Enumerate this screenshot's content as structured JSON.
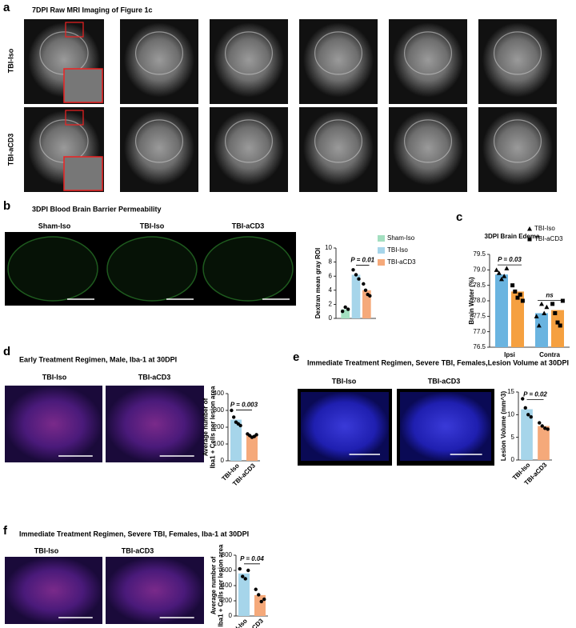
{
  "figure": {
    "a": {
      "label": "a",
      "title": "7DPI Raw MRI Imaging of Figure 1c",
      "rows": [
        "TBI-Iso",
        "TBI-aCD3"
      ]
    },
    "b": {
      "label": "b",
      "title": "3DPI Blood Brain Barrier Permeability",
      "images": [
        "Sham-Iso",
        "TBI-Iso",
        "TBI-aCD3"
      ]
    },
    "c": {
      "label": "c"
    },
    "d": {
      "label": "d",
      "title": "Early Treatment Regimen,  Male, Iba-1 at 30DPI",
      "images": [
        "TBI-Iso",
        "TBI-aCD3"
      ]
    },
    "e": {
      "label": "e",
      "title": "Immediate Treatment Regimen, Severe TBI, Females,Lesion Volume at 30DPI",
      "images": [
        "TBI-Iso",
        "TBI-aCD3"
      ]
    },
    "f": {
      "label": "f",
      "title": "Immediate Treatment Regimen, Severe TBI, Females, Iba-1 at 30DPI",
      "images": [
        "TBI-Iso",
        "TBI-aCD3"
      ]
    }
  },
  "chart_data": [
    {
      "type": "bar",
      "ylabel": [
        "Dextran mean gray  ROI"
      ],
      "categories": [
        null
      ],
      "series": [
        {
          "name": "Sham-Iso",
          "color": "#a3dfc0",
          "values": [
            1.3
          ],
          "points": [
            [
              1.0,
              1.6,
              1.3
            ]
          ]
        },
        {
          "name": "TBI-Iso",
          "color": "#a6d5ea",
          "values": [
            6.2
          ],
          "points": [
            [
              6.9,
              6.2,
              5.6
            ]
          ]
        },
        {
          "name": "TBI-aCD3",
          "color": "#f5a97a",
          "values": [
            4.0
          ],
          "points": [
            [
              4.9,
              4.0,
              3.4,
              3.2
            ]
          ]
        }
      ],
      "ylim": [
        0,
        10
      ],
      "yticks": [
        0,
        2,
        4,
        6,
        8,
        10
      ],
      "annotations": [
        "P = 0.01"
      ]
    },
    {
      "type": "bar",
      "title": "3DPI Brain Edema",
      "ylabel": [
        "Brain Water (%)"
      ],
      "categories": [
        "Ipsi",
        "Contra"
      ],
      "series": [
        {
          "name": "TBI-Iso",
          "color": "#6ab4e0",
          "marker": "triangle",
          "values": [
            78.85,
            77.6
          ],
          "points": [
            [
              79.0,
              78.9,
              78.7,
              78.8,
              79.05
            ],
            [
              77.5,
              77.2,
              77.9,
              77.6,
              77.8
            ]
          ]
        },
        {
          "name": "TBI-aCD3",
          "color": "#f5a040",
          "marker": "square",
          "values": [
            78.3,
            77.7
          ],
          "points": [
            [
              78.5,
              78.3,
              78.1,
              78.2,
              78.0
            ],
            [
              77.9,
              77.6,
              77.3,
              77.2,
              78.0
            ]
          ]
        }
      ],
      "ylim": [
        76.5,
        79.5
      ],
      "yticks": [
        76.5,
        {
          "value": 77,
          "label": "77.0"
        },
        77.5,
        {
          "value": 78,
          "label": "78.0"
        },
        78.5,
        {
          "value": 79,
          "label": "79.0"
        },
        79.5
      ],
      "annotations": [
        "P = 0.03",
        "ns"
      ]
    },
    {
      "type": "bar",
      "ylabel": [
        "Average number of",
        "Iba1 + Cells per lesion area"
      ],
      "categories": [
        "TBI-Iso",
        "TBI-aCD3"
      ],
      "values": [
        245,
        150
      ],
      "colors": [
        "#a6d5ea",
        "#f5a97a"
      ],
      "points": [
        [
          300,
          260,
          230,
          220,
          210
        ],
        [
          160,
          150,
          140,
          145,
          155
        ]
      ],
      "ylim": [
        0,
        400
      ],
      "yticks": [
        0,
        100,
        200,
        300,
        400
      ],
      "annotations": [
        "P = 0.003"
      ]
    },
    {
      "type": "bar",
      "ylabel": [
        "Lesion Volume (mm^3)"
      ],
      "categories": [
        "TBI-Iso",
        "TBI-aCD3"
      ],
      "values": [
        11.2,
        7.5
      ],
      "colors": [
        "#a6d5ea",
        "#f5a97a"
      ],
      "points": [
        [
          13.5,
          11.5,
          10,
          9.5
        ],
        [
          8.2,
          7.5,
          7.0,
          6.8
        ]
      ],
      "ylim": [
        0,
        15
      ],
      "yticks": [
        0,
        5,
        10,
        15
      ],
      "annotations": [
        "P = 0.02"
      ]
    },
    {
      "type": "bar",
      "ylabel": [
        "Average number of",
        "Iba1 + Cells per lesion  area"
      ],
      "categories": [
        "TBI-Iso",
        "TBI-aCD3"
      ],
      "values": [
        560,
        275
      ],
      "colors": [
        "#a6d5ea",
        "#f5a97a"
      ],
      "points": [
        [
          620,
          520,
          490,
          600
        ],
        [
          350,
          280,
          190,
          220
        ]
      ],
      "ylim": [
        0,
        800
      ],
      "yticks": [
        0,
        200,
        400,
        600,
        800
      ],
      "annotations": [
        "P = 0.04"
      ]
    }
  ]
}
